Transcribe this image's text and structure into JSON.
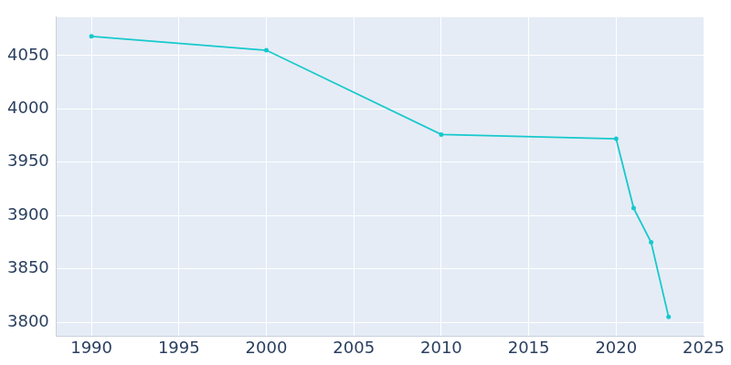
{
  "chart_data": {
    "type": "line",
    "x": [
      1990,
      2000,
      2010,
      2020,
      2021,
      2022,
      2023
    ],
    "values": [
      4068,
      4055,
      3976,
      3972,
      3907,
      3875,
      3805
    ],
    "color": "#17c9cc",
    "marker": "circle",
    "xlim": [
      1988,
      2025
    ],
    "xticks": [
      1990,
      1995,
      2000,
      2005,
      2010,
      2015,
      2020,
      2025
    ],
    "ylim": [
      3787,
      4086
    ],
    "yticks": [
      3800,
      3850,
      3900,
      3950,
      4000,
      4050
    ],
    "grid": true
  }
}
